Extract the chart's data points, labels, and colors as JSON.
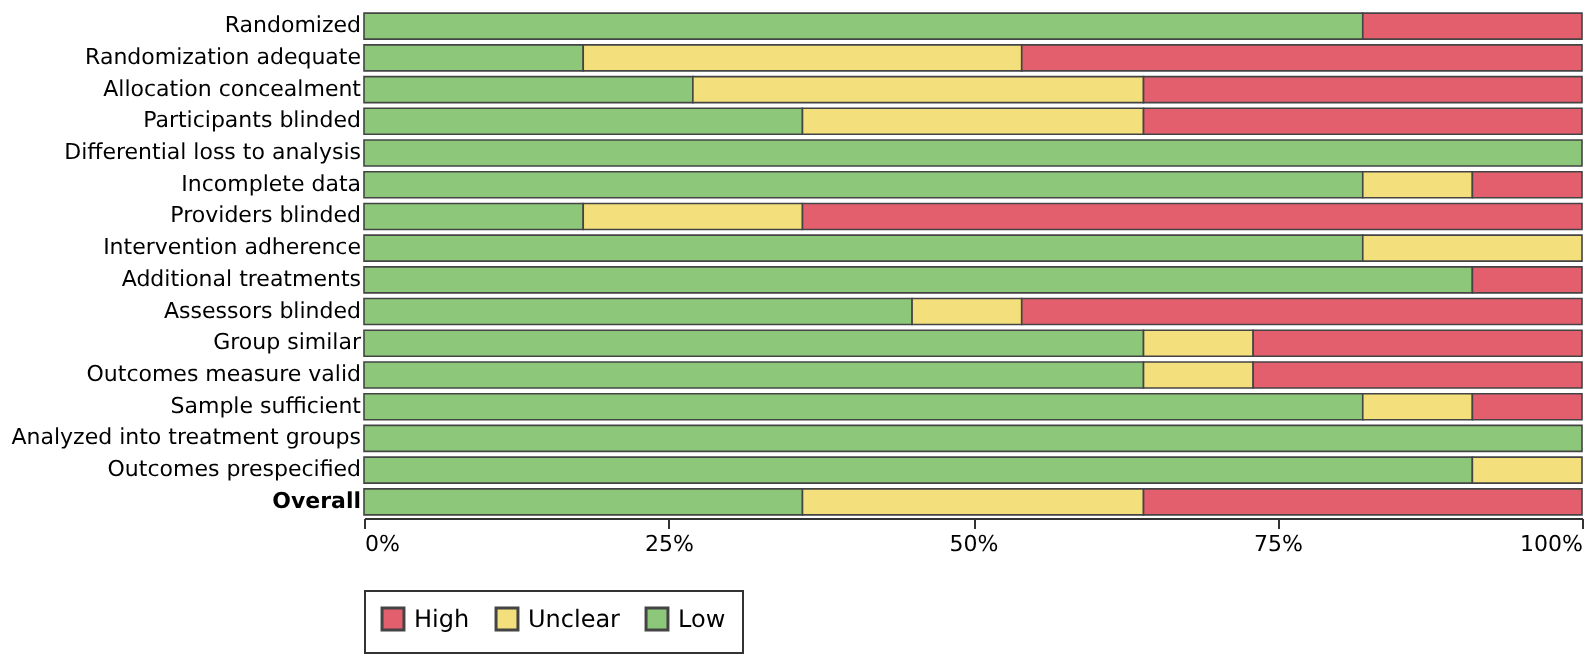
{
  "chart_data": {
    "type": "bar",
    "orientation": "horizontal",
    "stacked": true,
    "categories": [
      "Randomized",
      "Randomization adequate",
      "Allocation concealment",
      "Participants blinded",
      "Differential loss to analysis",
      "Incomplete data",
      "Providers blinded",
      "Intervention adherence",
      "Additional treatments",
      "Assessors blinded",
      "Group similar",
      "Outcomes measure valid",
      "Sample sufficient",
      "Analyzed into treatment groups",
      "Outcomes prespecified",
      "Overall"
    ],
    "series": [
      {
        "name": "Low",
        "color": "#8dc87a",
        "values": [
          82,
          18,
          27,
          36,
          100,
          82,
          18,
          82,
          91,
          45,
          64,
          64,
          82,
          100,
          91,
          36
        ]
      },
      {
        "name": "Unclear",
        "color": "#f3df7c",
        "values": [
          null,
          36,
          37,
          28,
          null,
          9,
          18,
          18,
          null,
          9,
          9,
          9,
          9,
          null,
          9,
          28
        ]
      },
      {
        "name": "High",
        "color": "#e35f6e",
        "values": [
          18,
          46,
          36,
          36,
          null,
          9,
          64,
          null,
          9,
          46,
          27,
          27,
          9,
          null,
          null,
          36
        ]
      }
    ],
    "xlim": [
      0,
      100
    ],
    "xticks": [
      {
        "value": 0,
        "label": "0%"
      },
      {
        "value": 25,
        "label": "25%"
      },
      {
        "value": 50,
        "label": "50%"
      },
      {
        "value": 75,
        "label": "75%"
      },
      {
        "value": 100,
        "label": "100%"
      }
    ],
    "grid": false,
    "legend": "bottom"
  }
}
